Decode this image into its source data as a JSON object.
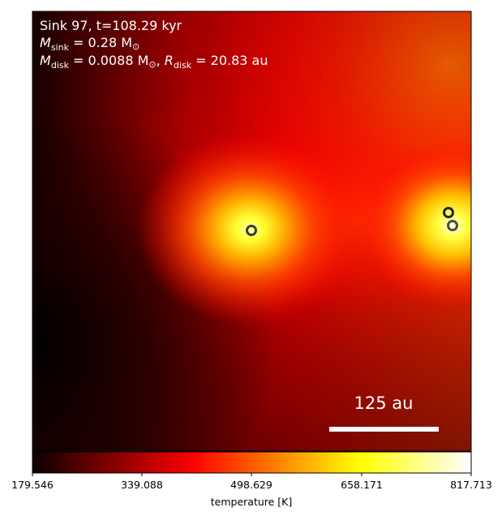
{
  "panel": {
    "annotation": {
      "line1": "Sink 97, t=108.29 kyr",
      "line2_symbol": "M",
      "line2_sub": "sink",
      "line2_rest": " = 0.28 M",
      "line2_sun": "⊙",
      "line3_symbol": "M",
      "line3_sub": "disk",
      "line3_mid": " = 0.0088 M",
      "line3_sun": "⊙",
      "line3_sep": ", ",
      "line3_r_symbol": "R",
      "line3_r_sub": "disk",
      "line3_r_rest": " = 20.83 au"
    },
    "scale_bar": {
      "label": "125 au"
    },
    "sinks": [
      {
        "name": "sink-center"
      },
      {
        "name": "sink-right-upper"
      },
      {
        "name": "sink-right-lower"
      }
    ]
  },
  "colorbar": {
    "label": "temperature [K]",
    "ticks": [
      "179.546",
      "339.088",
      "498.629",
      "658.171",
      "817.713"
    ],
    "colormap": "hot",
    "min": 179.546,
    "max": 817.713
  },
  "colors": {
    "sink_ring_outer": "#3a3a3a",
    "sink_ring_inner": "#f0f0f0",
    "scale_bar": "#ffffff"
  }
}
